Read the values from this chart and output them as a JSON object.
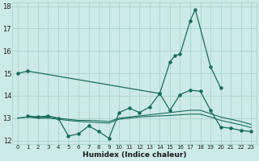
{
  "xlabel": "Humidex (Indice chaleur)",
  "bg_color": "#cceae7",
  "grid_color": "#aad4d0",
  "line_color": "#1a6b5a",
  "xlim": [
    -0.5,
    23.5
  ],
  "ylim": [
    11.85,
    18.15
  ],
  "yticks": [
    12,
    13,
    14,
    15,
    16,
    17,
    18
  ],
  "xticks": [
    0,
    1,
    2,
    3,
    4,
    5,
    6,
    7,
    8,
    9,
    10,
    11,
    12,
    13,
    14,
    15,
    16,
    17,
    18,
    19,
    20,
    21,
    22,
    23
  ],
  "line1_x": [
    0,
    1,
    14,
    15,
    15.5,
    16,
    17,
    17.5,
    19,
    20
  ],
  "line1_y": [
    15.0,
    15.1,
    14.1,
    15.5,
    15.8,
    15.85,
    17.35,
    17.85,
    15.3,
    14.35
  ],
  "line2_x": [
    1,
    2,
    3,
    4,
    5,
    6,
    7,
    8,
    9,
    10,
    11,
    12,
    13,
    14,
    15,
    16,
    17,
    18,
    19,
    20,
    21,
    22,
    23
  ],
  "line2_y": [
    13.1,
    13.05,
    13.1,
    13.0,
    12.2,
    12.3,
    12.65,
    12.4,
    12.1,
    13.25,
    13.45,
    13.25,
    13.5,
    14.1,
    13.35,
    14.05,
    14.25,
    14.2,
    13.35,
    12.6,
    12.55,
    12.45,
    12.4
  ],
  "line3_x": [
    0,
    1,
    2,
    3,
    4,
    5,
    6,
    7,
    8,
    9,
    10,
    11,
    12,
    13,
    14,
    15,
    16,
    17,
    18,
    19,
    20,
    21,
    22,
    23
  ],
  "line3_y": [
    13.0,
    13.05,
    13.05,
    13.05,
    13.0,
    12.95,
    12.9,
    12.9,
    12.88,
    12.85,
    13.0,
    13.05,
    13.1,
    13.15,
    13.2,
    13.25,
    13.3,
    13.35,
    13.35,
    13.2,
    13.05,
    12.95,
    12.85,
    12.72
  ],
  "line4_x": [
    0,
    1,
    2,
    3,
    4,
    5,
    6,
    7,
    8,
    9,
    10,
    11,
    12,
    13,
    14,
    15,
    16,
    17,
    18,
    19,
    20,
    21,
    22,
    23
  ],
  "line4_y": [
    13.0,
    13.05,
    13.0,
    13.0,
    12.95,
    12.9,
    12.85,
    12.83,
    12.8,
    12.78,
    12.95,
    13.0,
    13.05,
    13.08,
    13.1,
    13.12,
    13.15,
    13.18,
    13.18,
    13.05,
    12.9,
    12.8,
    12.7,
    12.58
  ]
}
